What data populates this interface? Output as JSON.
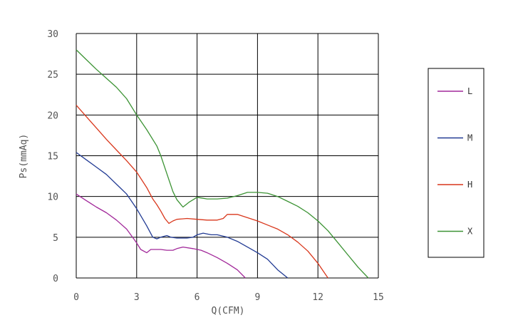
{
  "chart_data": {
    "type": "line",
    "title": "",
    "xlabel": "Q(CFM)",
    "ylabel": "Ps(mmAq)",
    "xlim": [
      0,
      15
    ],
    "ylim": [
      0,
      30
    ],
    "xticks": [
      0,
      3,
      6,
      9,
      12,
      15
    ],
    "yticks": [
      0,
      5,
      10,
      15,
      20,
      25,
      30
    ],
    "xtick_labels": [
      "0",
      "3",
      "6",
      "9",
      "12",
      "15"
    ],
    "ytick_labels": [
      "0",
      "5",
      "10",
      "15",
      "20",
      "25",
      "30"
    ],
    "grid": true,
    "legend_position": "right",
    "series": [
      {
        "name": "L",
        "color": "#a2299a",
        "points": [
          [
            0,
            10.3
          ],
          [
            0.5,
            9.5
          ],
          [
            1,
            8.7
          ],
          [
            1.5,
            8
          ],
          [
            2,
            7.1
          ],
          [
            2.5,
            6
          ],
          [
            3,
            4.3
          ],
          [
            3.2,
            3.5
          ],
          [
            3.5,
            3.1
          ],
          [
            3.7,
            3.5
          ],
          [
            4,
            3.5
          ],
          [
            4.2,
            3.5
          ],
          [
            4.5,
            3.4
          ],
          [
            4.8,
            3.4
          ],
          [
            5,
            3.6
          ],
          [
            5.3,
            3.8
          ],
          [
            5.8,
            3.6
          ],
          [
            6.2,
            3.4
          ],
          [
            6.5,
            3.1
          ],
          [
            7,
            2.5
          ],
          [
            7.5,
            1.8
          ],
          [
            8,
            1
          ],
          [
            8.4,
            0
          ]
        ]
      },
      {
        "name": "M",
        "color": "#223b94",
        "points": [
          [
            0,
            15.4
          ],
          [
            0.5,
            14.5
          ],
          [
            1,
            13.6
          ],
          [
            1.5,
            12.7
          ],
          [
            2,
            11.5
          ],
          [
            2.5,
            10.3
          ],
          [
            3,
            8.5
          ],
          [
            3.5,
            6.4
          ],
          [
            3.8,
            5
          ],
          [
            4,
            4.8
          ],
          [
            4.2,
            5
          ],
          [
            4.5,
            5.2
          ],
          [
            4.7,
            5
          ],
          [
            5,
            4.9
          ],
          [
            5.5,
            4.9
          ],
          [
            5.8,
            5
          ],
          [
            6,
            5.3
          ],
          [
            6.3,
            5.5
          ],
          [
            6.7,
            5.3
          ],
          [
            7,
            5.3
          ],
          [
            7.5,
            5
          ],
          [
            8,
            4.5
          ],
          [
            8.5,
            3.8
          ],
          [
            9,
            3.1
          ],
          [
            9.5,
            2.3
          ],
          [
            10,
            1
          ],
          [
            10.5,
            0
          ]
        ]
      },
      {
        "name": "H",
        "color": "#d9371c",
        "points": [
          [
            0,
            21.2
          ],
          [
            0.5,
            19.8
          ],
          [
            1,
            18.4
          ],
          [
            1.5,
            17
          ],
          [
            2,
            15.7
          ],
          [
            2.5,
            14.4
          ],
          [
            3,
            13
          ],
          [
            3.5,
            11.1
          ],
          [
            3.8,
            9.7
          ],
          [
            4,
            9
          ],
          [
            4.2,
            8.2
          ],
          [
            4.4,
            7.3
          ],
          [
            4.6,
            6.7
          ],
          [
            4.8,
            7
          ],
          [
            5,
            7.2
          ],
          [
            5.5,
            7.3
          ],
          [
            6,
            7.2
          ],
          [
            6.5,
            7.1
          ],
          [
            7,
            7.1
          ],
          [
            7.3,
            7.3
          ],
          [
            7.5,
            7.8
          ],
          [
            8,
            7.8
          ],
          [
            8.5,
            7.4
          ],
          [
            9,
            7
          ],
          [
            9.5,
            6.5
          ],
          [
            10,
            6
          ],
          [
            10.5,
            5.3
          ],
          [
            11,
            4.4
          ],
          [
            11.5,
            3.3
          ],
          [
            12,
            1.8
          ],
          [
            12.5,
            0
          ]
        ]
      },
      {
        "name": "X",
        "color": "#3c9334",
        "points": [
          [
            0,
            28
          ],
          [
            0.5,
            26.8
          ],
          [
            1,
            25.6
          ],
          [
            1.5,
            24.5
          ],
          [
            2,
            23.4
          ],
          [
            2.5,
            22
          ],
          [
            3,
            20
          ],
          [
            3.5,
            18.2
          ],
          [
            4,
            16.2
          ],
          [
            4.2,
            15
          ],
          [
            4.5,
            12.8
          ],
          [
            4.8,
            10.6
          ],
          [
            5,
            9.6
          ],
          [
            5.3,
            8.7
          ],
          [
            5.6,
            9.3
          ],
          [
            6,
            9.9
          ],
          [
            6.5,
            9.7
          ],
          [
            7,
            9.7
          ],
          [
            7.5,
            9.8
          ],
          [
            8,
            10.1
          ],
          [
            8.5,
            10.5
          ],
          [
            9,
            10.5
          ],
          [
            9.5,
            10.4
          ],
          [
            10,
            10
          ],
          [
            10.5,
            9.4
          ],
          [
            11,
            8.8
          ],
          [
            11.5,
            8
          ],
          [
            12,
            7
          ],
          [
            12.5,
            5.8
          ],
          [
            13,
            4.3
          ],
          [
            13.5,
            2.8
          ],
          [
            14,
            1.3
          ],
          [
            14.5,
            0
          ]
        ]
      }
    ]
  }
}
